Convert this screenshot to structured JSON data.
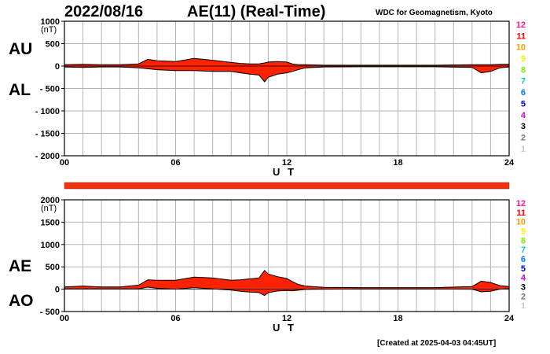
{
  "header": {
    "date": "2022/08/16",
    "title": "AE(11) (Real-Time)",
    "source": "WDC for Geomagnetism, Kyoto"
  },
  "footer": {
    "created": "[Created at 2025-04-03 04:45UT]"
  },
  "colors": {
    "trace": "#ff2200",
    "status_bar": "#ee3311",
    "grid": "#b4b4b4",
    "station_count_legend": {
      "12": "#ff1493",
      "11": "#ff0000",
      "10": "#ff9900",
      "9": "#ffee00",
      "8": "#77ee00",
      "7": "#00cccc",
      "6": "#0077ff",
      "5": "#0000cc",
      "4": "#dd00dd",
      "3": "#000000",
      "2": "#777777",
      "1": "#cccccc"
    }
  },
  "station_count_legend": [
    "12",
    "11",
    "10",
    "9",
    "8",
    "7",
    "6",
    "5",
    "4",
    "3",
    "2",
    "1"
  ],
  "chart_data": [
    {
      "type": "area",
      "panel": "AU/AL",
      "series_labels": [
        "AU",
        "AL"
      ],
      "ylabel": "(nT)",
      "xlabel": "U T",
      "xlim": [
        0,
        24
      ],
      "ylim": [
        -2000,
        1000
      ],
      "xticks": [
        0,
        6,
        12,
        18,
        24
      ],
      "xtick_labels": [
        "00",
        "06",
        "12",
        "18",
        "24"
      ],
      "yticks": [
        1000,
        500,
        0,
        -500,
        -1000,
        -1500,
        -2000
      ],
      "ytick_labels": [
        "1000",
        "500",
        "0",
        "- 500",
        "- 1000",
        "- 1500",
        "- 2000"
      ],
      "grid": true,
      "x": [
        0,
        1,
        2,
        3,
        4,
        4.5,
        5,
        6,
        7,
        7.5,
        8,
        9,
        9.5,
        10,
        10.5,
        10.8,
        11,
        11.5,
        12,
        12.3,
        12.6,
        13,
        14,
        16,
        18,
        20,
        22,
        22.5,
        23,
        23.5,
        24
      ],
      "series": [
        {
          "name": "AU",
          "values": [
            30,
            40,
            30,
            30,
            50,
            150,
            120,
            100,
            170,
            150,
            130,
            80,
            60,
            50,
            50,
            70,
            90,
            100,
            90,
            50,
            30,
            30,
            20,
            20,
            20,
            20,
            30,
            30,
            30,
            40,
            40
          ]
        },
        {
          "name": "AL",
          "values": [
            -20,
            -30,
            -20,
            -20,
            -40,
            -60,
            -80,
            -100,
            -100,
            -110,
            -120,
            -120,
            -150,
            -180,
            -200,
            -350,
            -250,
            -180,
            -150,
            -120,
            -80,
            -40,
            -20,
            -15,
            -15,
            -15,
            -30,
            -150,
            -120,
            -40,
            -20
          ]
        }
      ]
    },
    {
      "type": "area",
      "panel": "AE/AO",
      "series_labels": [
        "AE",
        "AO"
      ],
      "ylabel": "(nT)",
      "xlabel": "U T",
      "xlim": [
        0,
        24
      ],
      "ylim": [
        -500,
        2000
      ],
      "xticks": [
        0,
        6,
        12,
        18,
        24
      ],
      "xtick_labels": [
        "00",
        "06",
        "12",
        "18",
        "24"
      ],
      "yticks": [
        2000,
        1500,
        1000,
        500,
        0,
        -500
      ],
      "ytick_labels": [
        "2000",
        "1500",
        "1000",
        "500",
        "0",
        "- 500"
      ],
      "grid": true,
      "x": [
        0,
        1,
        2,
        3,
        4,
        4.5,
        5,
        6,
        7,
        7.5,
        8,
        9,
        9.5,
        10,
        10.5,
        10.8,
        11,
        11.5,
        12,
        12.3,
        12.6,
        13,
        14,
        16,
        18,
        20,
        22,
        22.5,
        23,
        23.5,
        24
      ],
      "series": [
        {
          "name": "AE",
          "values": [
            50,
            70,
            50,
            50,
            90,
            210,
            200,
            200,
            270,
            260,
            250,
            200,
            210,
            230,
            250,
            420,
            340,
            280,
            240,
            170,
            110,
            70,
            40,
            35,
            35,
            35,
            60,
            180,
            150,
            80,
            60
          ]
        },
        {
          "name": "AO",
          "values": [
            5,
            5,
            5,
            5,
            5,
            45,
            20,
            0,
            35,
            20,
            5,
            -20,
            -45,
            -65,
            -75,
            -140,
            -80,
            -40,
            -30,
            -35,
            -25,
            -5,
            0,
            3,
            3,
            3,
            0,
            -60,
            -45,
            0,
            10
          ]
        }
      ]
    }
  ]
}
